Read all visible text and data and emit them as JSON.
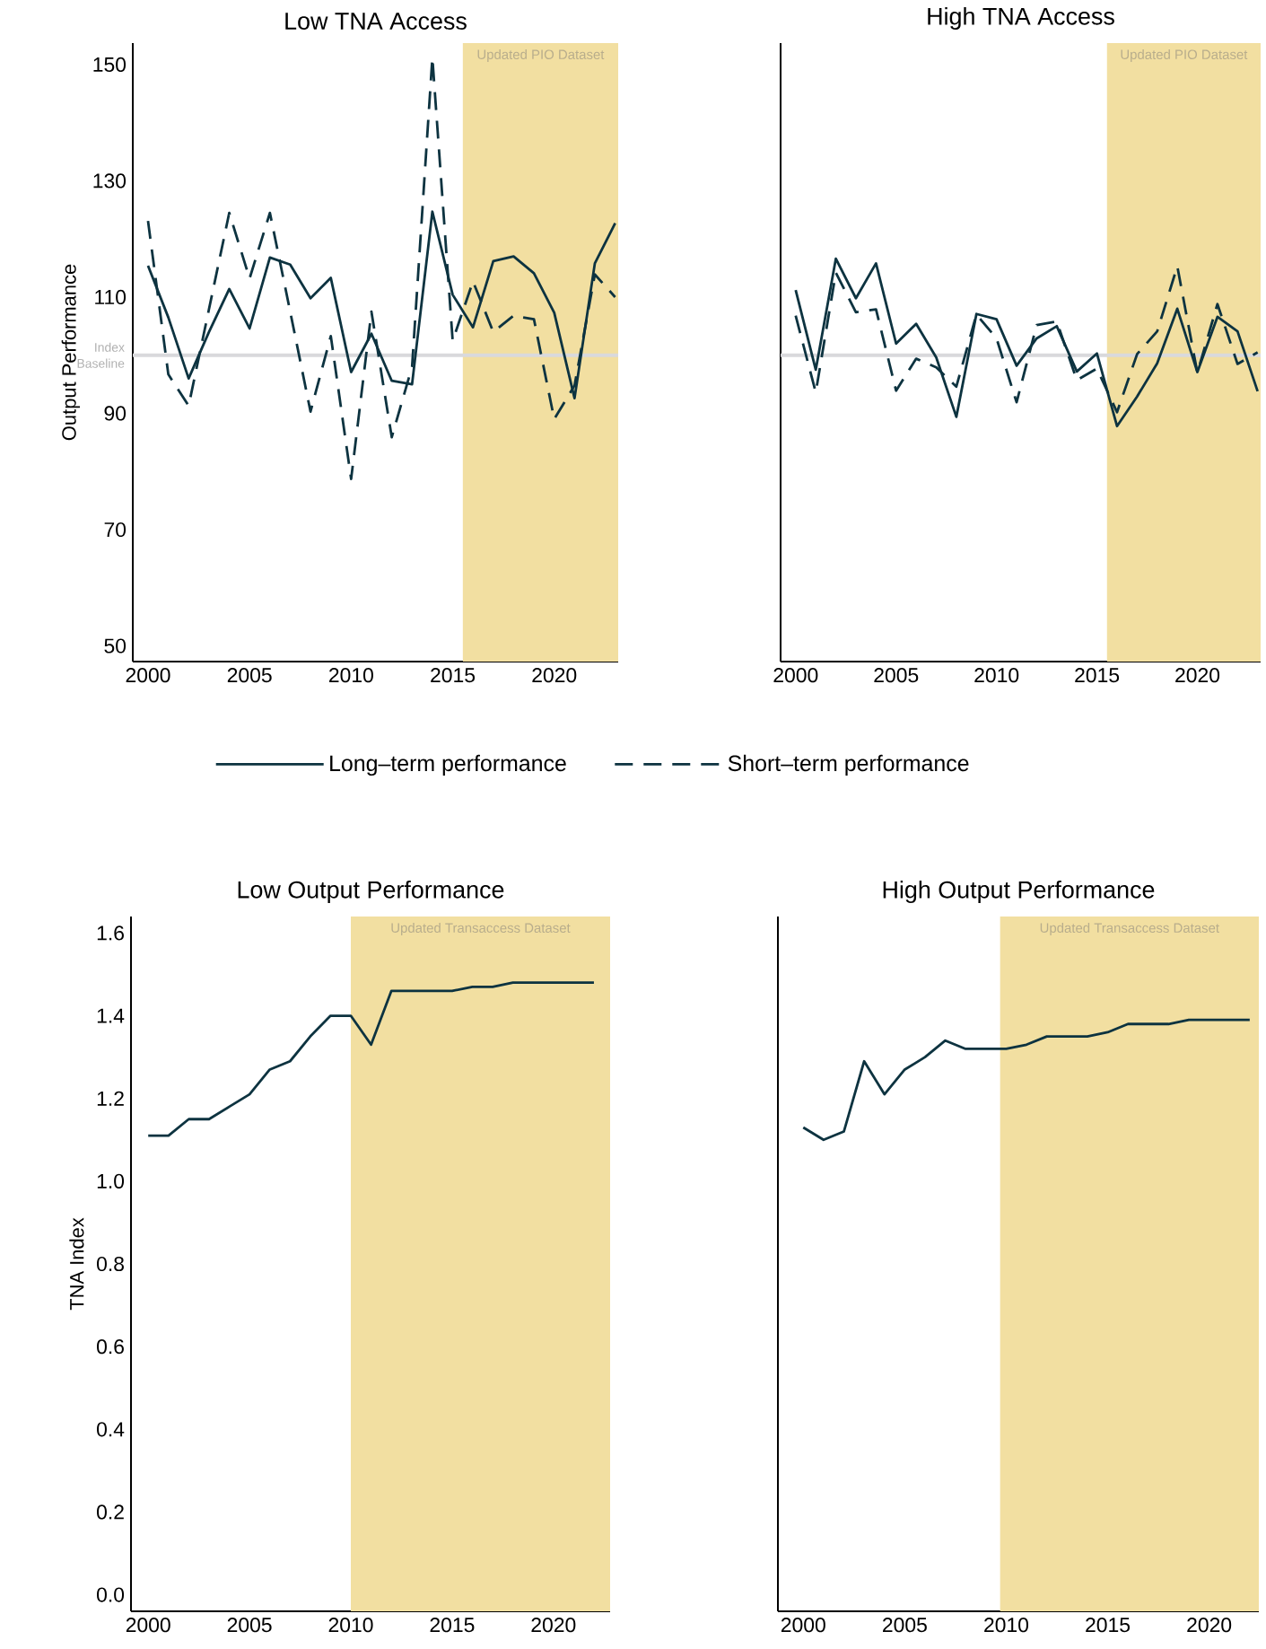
{
  "chart_data": [
    {
      "type": "line",
      "title": "Low TNA Access",
      "ylabel": "Output Performance",
      "legend": "bottom",
      "x": [
        2000,
        2001,
        2002,
        2003,
        2004,
        2005,
        2006,
        2007,
        2008,
        2009,
        2010,
        2011,
        2012,
        2013,
        2014,
        2015,
        2016,
        2017,
        2018,
        2019,
        2020,
        2021,
        2022,
        2023
      ],
      "series": [
        {
          "name": "Long–term performance",
          "color": "#0d3340",
          "line_style": "solid",
          "values": [
            115.4,
            106.5,
            96,
            104,
            111.4,
            104.6,
            116.8,
            115.6,
            109.8,
            113.3,
            97.1,
            103.7,
            95.6,
            95,
            124.7,
            110.4,
            104.8,
            116.2,
            117,
            114.1,
            107.3,
            92.6,
            115.8,
            122.7
          ]
        },
        {
          "name": "Short–term performance",
          "color": "#0d3340",
          "line_style": "dashed",
          "values": [
            123.1,
            96.7,
            91.3,
            107.9,
            124.5,
            113.2,
            124.5,
            107.5,
            90.3,
            103.3,
            78.7,
            107.5,
            85.9,
            98,
            151.2,
            102.5,
            112.7,
            104,
            106.8,
            106.2,
            89,
            94.8,
            113.9,
            110
          ]
        }
      ],
      "xlim": [
        1999.25,
        2023.15
      ],
      "ylim": [
        47.3,
        153.7
      ],
      "xticks": [
        2000,
        2005,
        2010,
        2015,
        2020
      ],
      "yticks": [
        50,
        70,
        90,
        110,
        130,
        150
      ],
      "bands": [
        {
          "axis": "x",
          "from": 2015.5,
          "to": 2023.15,
          "label": "Updated PIO Dataset",
          "color": "#f2dfa1"
        }
      ],
      "ref_lines": [
        {
          "axis": "y",
          "value": 100,
          "label": "Index Baseline",
          "color": "#d9d9dc"
        }
      ]
    },
    {
      "type": "line",
      "title": "High TNA Access",
      "tick_labels": "x",
      "x": [
        2000,
        2001,
        2002,
        2003,
        2004,
        2005,
        2006,
        2007,
        2008,
        2009,
        2010,
        2011,
        2012,
        2013,
        2014,
        2015,
        2016,
        2017,
        2018,
        2019,
        2020,
        2021,
        2022,
        2023
      ],
      "series": [
        {
          "color": "#0d3340",
          "line_style": "solid",
          "values": [
            111.2,
            97.5,
            116.6,
            109.8,
            115.8,
            102,
            105.4,
            99.6,
            89.4,
            107.1,
            106.2,
            98.2,
            102.9,
            105,
            97.2,
            100.3,
            87.8,
            92.9,
            98.6,
            108,
            97.1,
            106.6,
            104.1,
            93.8
          ]
        },
        {
          "color": "#0d3340",
          "line_style": "dashed",
          "values": [
            106.8,
            93.6,
            114.2,
            107.4,
            107.9,
            93.9,
            99.4,
            97.9,
            94.6,
            107,
            102.9,
            91.9,
            105.2,
            105.8,
            95.7,
            97.7,
            90.2,
            100.2,
            104.1,
            115.3,
            97,
            108.8,
            98.5,
            100.5
          ]
        }
      ],
      "xlim": [
        1999.25,
        2023.15
      ],
      "ylim": [
        47.3,
        153.7
      ],
      "xticks": [
        2000,
        2005,
        2010,
        2015,
        2020
      ],
      "yticks": [
        50,
        70,
        90,
        110,
        130,
        150
      ],
      "bands": [
        {
          "axis": "x",
          "from": 2015.5,
          "to": 2023.15,
          "label": "Updated PIO Dataset",
          "color": "#f2dfa1"
        }
      ],
      "ref_lines": [
        {
          "axis": "y",
          "value": 100,
          "color": "#d9d9dc"
        }
      ]
    },
    {
      "type": "line",
      "title": "Low Output Performance",
      "ylabel": "TNA Index",
      "x": [
        2000,
        2001,
        2002,
        2003,
        2004,
        2005,
        2006,
        2007,
        2008,
        2009,
        2010,
        2011,
        2012,
        2013,
        2014,
        2015,
        2016,
        2017,
        2018,
        2019,
        2020,
        2021,
        2022
      ],
      "series": [
        {
          "color": "#0d3340",
          "line_style": "solid",
          "values": [
            1.11,
            1.11,
            1.15,
            1.15,
            1.18,
            1.21,
            1.27,
            1.29,
            1.35,
            1.4,
            1.4,
            1.33,
            1.46,
            1.46,
            1.46,
            1.46,
            1.47,
            1.47,
            1.48,
            1.48,
            1.48,
            1.48,
            1.48
          ]
        }
      ],
      "xlim": [
        1999.15,
        2022.8
      ],
      "ylim": [
        -0.04,
        1.64
      ],
      "xticks": [
        2000,
        2005,
        2010,
        2015,
        2020
      ],
      "yticks": [
        {
          "value": 0,
          "label": "0.0"
        },
        0.2,
        0.4,
        0.6,
        0.8,
        {
          "value": 1,
          "label": "1.0"
        },
        1.2,
        1.4,
        1.6
      ],
      "bands": [
        {
          "axis": "x",
          "from": 2010,
          "to": 2022.8,
          "label": "Updated Transaccess Dataset",
          "color": "#f2dfa1"
        }
      ]
    },
    {
      "type": "line",
      "title": "High Output Performance",
      "tick_labels": "x",
      "x": [
        2000,
        2001,
        2002,
        2003,
        2004,
        2005,
        2006,
        2007,
        2008,
        2009,
        2010,
        2011,
        2012,
        2013,
        2014,
        2015,
        2016,
        2017,
        2018,
        2019,
        2020,
        2021,
        2022
      ],
      "series": [
        {
          "color": "#0d3340",
          "line_style": "solid",
          "values": [
            1.13,
            1.1,
            1.12,
            1.29,
            1.21,
            1.27,
            1.3,
            1.34,
            1.32,
            1.32,
            1.32,
            1.33,
            1.35,
            1.35,
            1.35,
            1.36,
            1.38,
            1.38,
            1.38,
            1.39,
            1.39,
            1.39,
            1.39
          ]
        }
      ],
      "xlim": [
        1998.75,
        2022.45
      ],
      "ylim": [
        -0.04,
        1.64
      ],
      "xticks": [
        2000,
        2005,
        2010,
        2015,
        2020
      ],
      "yticks": [
        0,
        0.2,
        0.4,
        0.6,
        0.8,
        1,
        1.2,
        1.4,
        1.6
      ],
      "bands": [
        {
          "axis": "x",
          "from": 2009.7,
          "to": 2022.45,
          "label": "Updated Transaccess Dataset",
          "color": "#f2dfa1"
        }
      ]
    }
  ]
}
